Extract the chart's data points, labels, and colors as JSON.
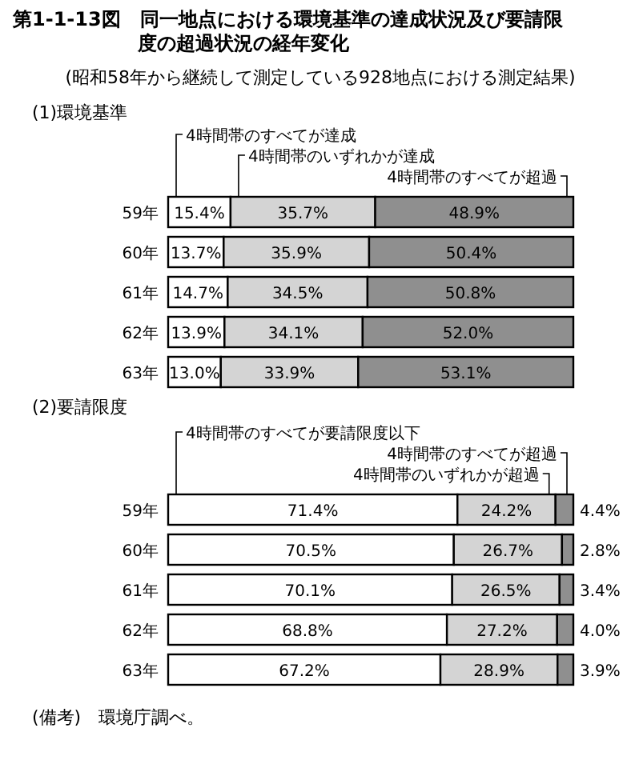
{
  "chart_data": [
    {
      "type": "bar",
      "orientation": "horizontal",
      "stacked": true,
      "title": "第1-1-13図　同一地点における環境基準の達成状況及び要請限度の超過状況の経年変化",
      "subtitle": "(昭和58年から継続して測定している928地点における測定結果)",
      "annotations": [
        "(1)環境基準"
      ],
      "categories": [
        "59年",
        "60年",
        "61年",
        "62年",
        "63年"
      ],
      "series": [
        {
          "name": "4時間帯のすべてが達成",
          "color": "#ffffff",
          "values": [
            15.4,
            13.7,
            14.7,
            13.9,
            13.0
          ],
          "value_labels": [
            "15.4%",
            "13.7%",
            "14.7%",
            "13.9%",
            "13.0%"
          ]
        },
        {
          "name": "4時間帯のいずれかが達成",
          "color": "#d4d4d4",
          "values": [
            35.7,
            35.9,
            34.5,
            34.1,
            33.9
          ],
          "value_labels": [
            "35.7%",
            "35.9%",
            "34.5%",
            "34.1%",
            "33.9%"
          ]
        },
        {
          "name": "4時間帯のすべてが超過",
          "color": "#8f8f8f",
          "values": [
            48.9,
            50.4,
            50.8,
            52.0,
            53.1
          ],
          "value_labels": [
            "48.9%",
            "50.4%",
            "50.8%",
            "52.0%",
            "53.1%"
          ]
        }
      ]
    },
    {
      "type": "bar",
      "orientation": "horizontal",
      "stacked": true,
      "title": "(2)要請限度",
      "annotations": [
        "(備考)　環境庁調べ。"
      ],
      "categories": [
        "59年",
        "60年",
        "61年",
        "62年",
        "63年"
      ],
      "series": [
        {
          "name": "4時間帯のすべてが要請限度以下",
          "color": "#ffffff",
          "values": [
            71.4,
            70.5,
            70.1,
            68.8,
            67.2
          ],
          "value_labels": [
            "71.4%",
            "70.5%",
            "70.1%",
            "68.8%",
            "67.2%"
          ]
        },
        {
          "name": "4時間帯のいずれかが超過",
          "color": "#d4d4d4",
          "values": [
            24.2,
            26.7,
            26.5,
            27.2,
            28.9
          ],
          "value_labels": [
            "24.2%",
            "26.7%",
            "26.5%",
            "27.2%",
            "28.9%"
          ]
        },
        {
          "name": "4時間帯のすべてが超過",
          "color": "#8f8f8f",
          "values": [
            4.4,
            2.8,
            3.4,
            4.0,
            3.9
          ],
          "value_labels": [
            "4.4%",
            "2.8%",
            "3.4%",
            "4.0%",
            "3.9%"
          ]
        }
      ]
    }
  ]
}
